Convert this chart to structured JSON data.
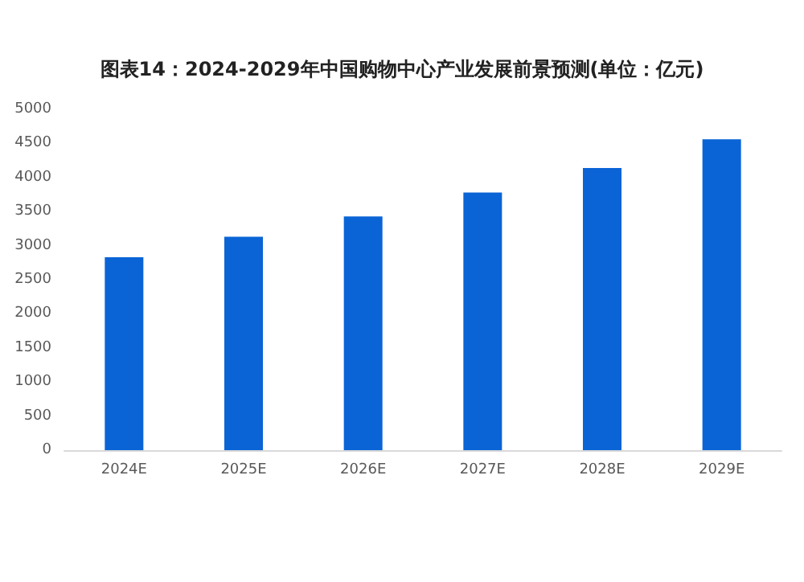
{
  "chart_data": {
    "type": "bar",
    "title": "图表14：2024-2029年中国购物中心产业发展前景预测(单位：亿元)",
    "categories": [
      "2024E",
      "2025E",
      "2026E",
      "2027E",
      "2028E",
      "2029E"
    ],
    "values": [
      2830,
      3130,
      3430,
      3780,
      4140,
      4560
    ],
    "color": "#0a64d6",
    "ylim": [
      0,
      5000
    ],
    "yticks": [
      0,
      500,
      1000,
      1500,
      2000,
      2500,
      3000,
      3500,
      4000,
      4500,
      5000
    ],
    "grid": false
  }
}
